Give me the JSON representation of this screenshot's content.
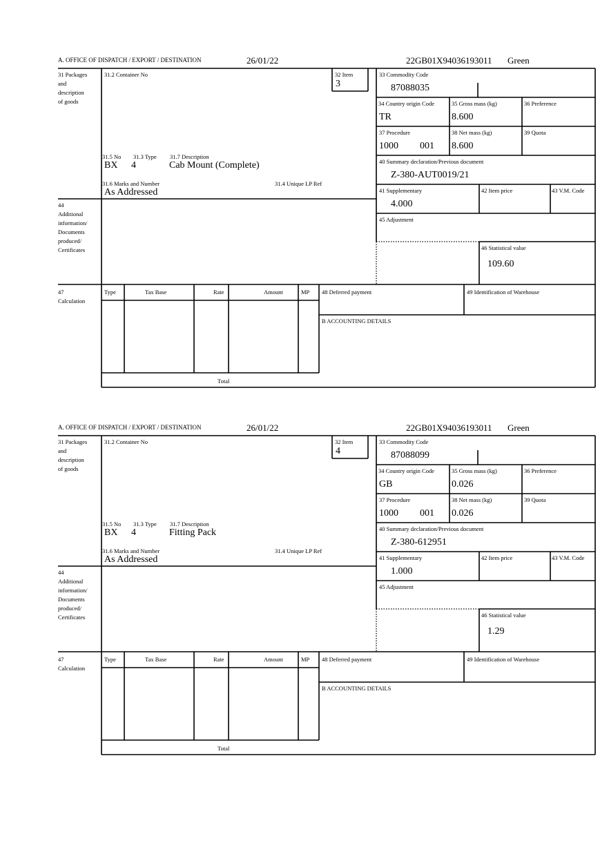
{
  "labels": {
    "office": "A.  OFFICE OF DISPATCH / EXPORT / DESTINATION",
    "packages": [
      "31 Packages",
      "and",
      "description",
      "of goods"
    ],
    "container": "31.2 Container No",
    "item": "32 Item",
    "no": "31.5 No",
    "type": "31.3 Type",
    "description": "31.7 Description",
    "marks": "31.6 Marks and Number",
    "unique_ref": "31.4 Unique LP Ref",
    "commodity": "33 Commodity Code",
    "country": "34 Country origin Code",
    "gross": "35 Gross mass (kg)",
    "preference": "36 Preference",
    "procedure": "37 Procedure",
    "net": "38 Net mass (kg)",
    "quota": "39 Quota",
    "summary": "40 Summary declaration/Previous document",
    "supplementary": "41 Supplementary",
    "item_price": "42 Item price",
    "vm_code": "43 V.M. Code",
    "additional": [
      "44",
      "Additional",
      "information/",
      "Documents",
      "produced/",
      "Certificates"
    ],
    "adjustment": "45 Adjustment",
    "statistical": "46 Statistical value",
    "calculation": [
      "47",
      "Calculation"
    ],
    "calc_headers": [
      "Type",
      "Tax Base",
      "Rate",
      "Amount",
      "MP"
    ],
    "total": "Total",
    "deferred": "48 Deferred payment",
    "warehouse": "49 Identification of Warehouse",
    "accounting": "B ACCOUNTING DETAILS"
  },
  "items": [
    {
      "date": "26/01/22",
      "reference": "22GB01X94036193011",
      "route": "Green",
      "item_no": "3",
      "pkg_type": "BX",
      "pkg_no": "4",
      "description": "Cab Mount (Complete)",
      "marks": "As Addressed",
      "commodity_code": "87088035",
      "country_origin": "TR",
      "gross_mass": "8.600",
      "procedure": "1000",
      "procedure_add": "001",
      "net_mass": "8.600",
      "previous_document": "Z-380-AUT0019/21",
      "supplementary": "4.000",
      "statistical_value": "109.60"
    },
    {
      "date": "26/01/22",
      "reference": "22GB01X94036193011",
      "route": "Green",
      "item_no": "4",
      "pkg_type": "BX",
      "pkg_no": "4",
      "description": "Fitting Pack",
      "marks": "As Addressed",
      "commodity_code": "87088099",
      "country_origin": "GB",
      "gross_mass": "0.026",
      "procedure": "1000",
      "procedure_add": "001",
      "net_mass": "0.026",
      "previous_document": "Z-380-612951",
      "supplementary": "1.000",
      "statistical_value": "1.29"
    }
  ]
}
